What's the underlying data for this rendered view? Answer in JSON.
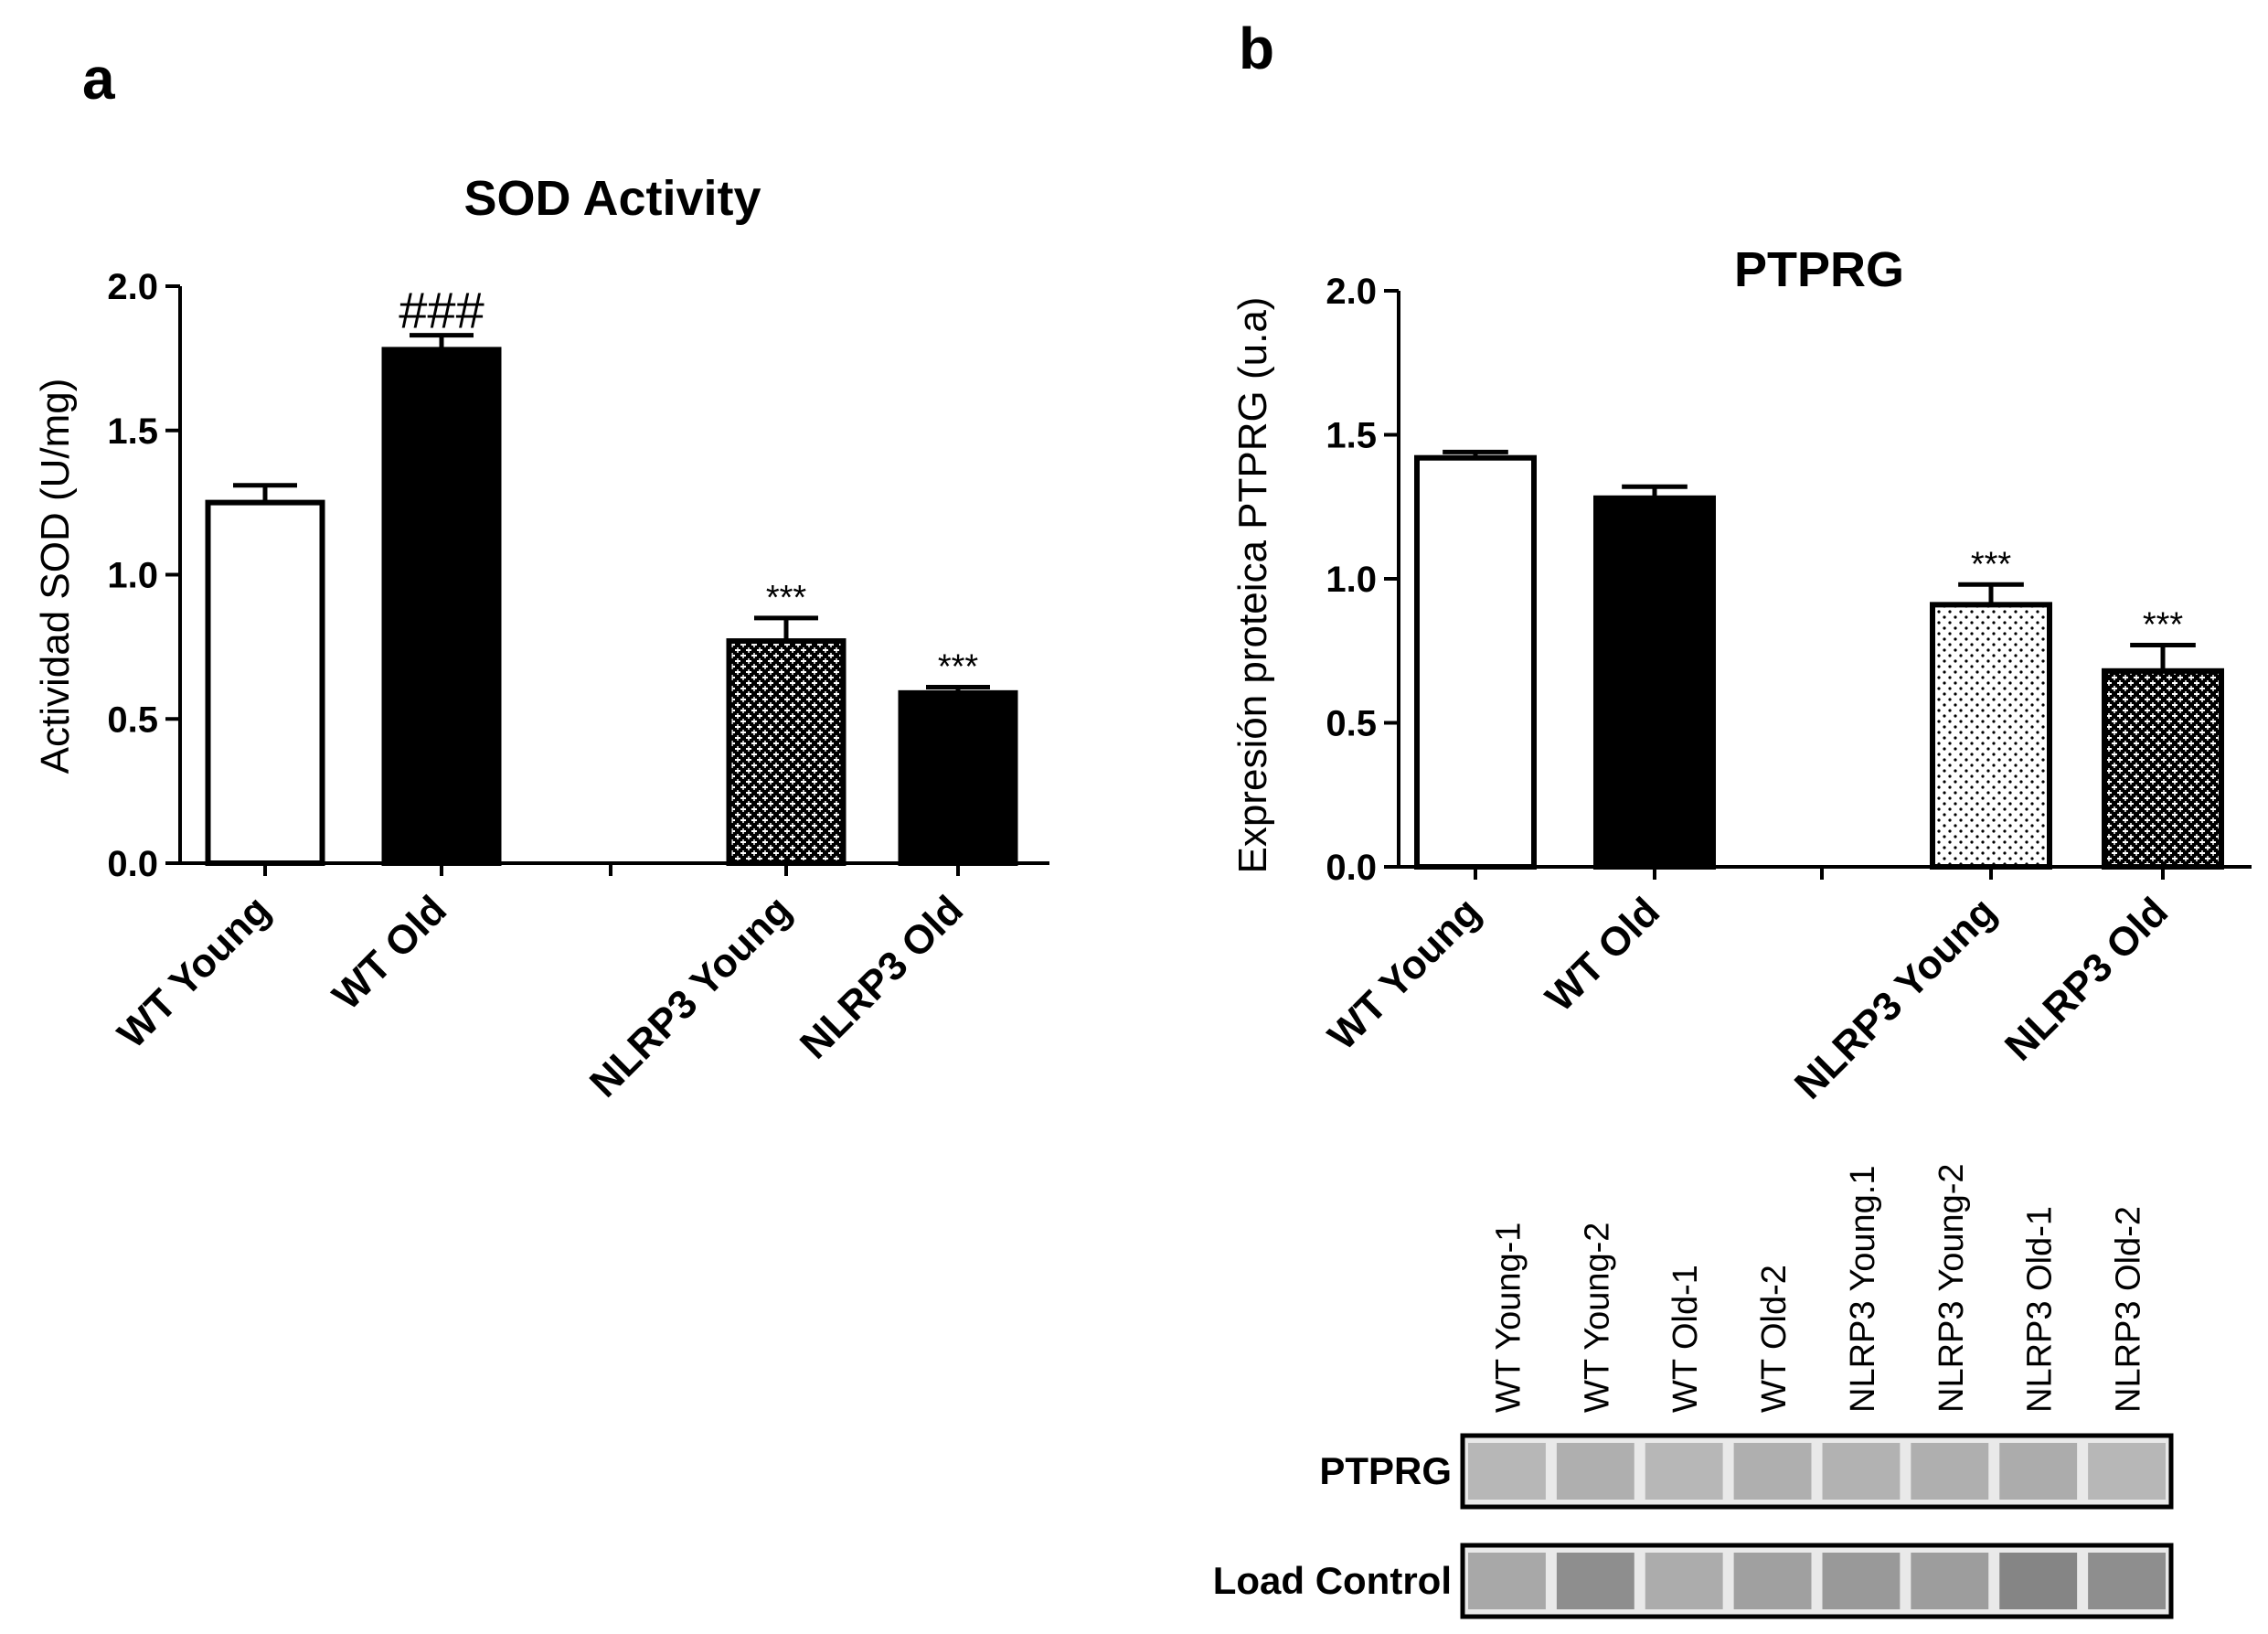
{
  "panels": {
    "a": "a",
    "b": "b"
  },
  "chart_data": [
    {
      "type": "bar",
      "title": "SOD Activity",
      "xlabel": "",
      "ylabel": "Actividad  SOD (U/mg)",
      "ylim": [
        0,
        2.0
      ],
      "yticks": [
        "0.0",
        "0.5",
        "1.0",
        "1.5",
        "2.0"
      ],
      "categories": [
        "WT Young",
        "WT Old",
        "NLRP3 Young",
        "NLRP3 Old"
      ],
      "values": [
        1.25,
        1.78,
        0.77,
        0.59
      ],
      "errors": [
        0.06,
        0.05,
        0.08,
        0.02
      ],
      "annotations": [
        "",
        "###",
        "***",
        "***"
      ],
      "fills": [
        "white",
        "black",
        "crosshatch",
        "black"
      ]
    },
    {
      "type": "bar",
      "title": "PTPRG",
      "xlabel": "",
      "ylabel": "Expresión proteica  PTPRG  (u.a)",
      "ylim": [
        0,
        2.0
      ],
      "yticks": [
        "0.0",
        "0.5",
        "1.0",
        "1.5",
        "2.0"
      ],
      "categories": [
        "WT Young",
        "WT Old",
        "NLRP3 Young",
        "NLRP3 Old"
      ],
      "values": [
        1.42,
        1.28,
        0.91,
        0.68
      ],
      "errors": [
        0.02,
        0.04,
        0.07,
        0.09
      ],
      "annotations": [
        "",
        "",
        "***",
        "***"
      ],
      "fills": [
        "white",
        "black",
        "dots",
        "crosshatch"
      ]
    }
  ],
  "blot": {
    "lanes": [
      "WT Young-1",
      "WT Young-2",
      "WT Old-1",
      "WT Old-2",
      "NLRP3 Young.1",
      "NLRP3 Young-2",
      "NLRP3 Old-1",
      "NLRP3 Old-2"
    ],
    "rows": [
      {
        "label": "PTPRG",
        "intensities": [
          0.35,
          0.4,
          0.35,
          0.4,
          0.38,
          0.4,
          0.42,
          0.35
        ]
      },
      {
        "label": "Load Control",
        "intensities": [
          0.45,
          0.62,
          0.42,
          0.5,
          0.55,
          0.52,
          0.68,
          0.62
        ]
      }
    ]
  }
}
